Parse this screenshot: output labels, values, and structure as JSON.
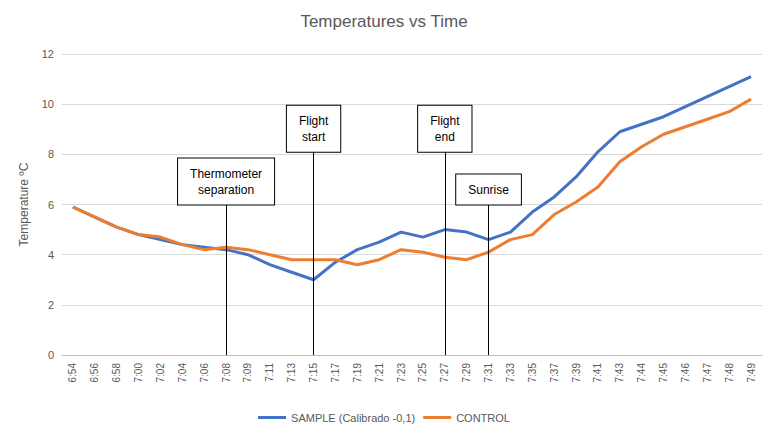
{
  "chart_data": {
    "type": "line",
    "title": "Temperatures vs Time",
    "y_label": "Temperature ºC",
    "categories": [
      "6:54",
      "6:56",
      "6:58",
      "7:00",
      "7:02",
      "7:04",
      "7:06",
      "7:08",
      "7:09",
      "7:11",
      "7:13",
      "7:15",
      "7:17",
      "7:19",
      "7:21",
      "7:23",
      "7:25",
      "7:27",
      "7:29",
      "7:31",
      "7:33",
      "7:35",
      "7:37",
      "7:39",
      "7:41",
      "7:43",
      "7:44",
      "7:45",
      "7:46",
      "7:47",
      "7:48",
      "7:49"
    ],
    "series": [
      {
        "name": "SAMPLE (Calibrado -0,1)",
        "color": "#4472c4",
        "values": [
          5.9,
          5.5,
          5.1,
          4.8,
          4.6,
          4.4,
          4.3,
          4.2,
          4.0,
          3.6,
          3.3,
          3.0,
          3.7,
          4.2,
          4.5,
          4.9,
          4.7,
          5.0,
          4.9,
          4.6,
          4.9,
          5.7,
          6.3,
          7.1,
          8.1,
          8.9,
          9.2,
          9.5,
          9.9,
          10.3,
          10.7,
          11.1
        ]
      },
      {
        "name": "CONTROL",
        "color": "#ed7d31",
        "values": [
          5.9,
          5.5,
          5.1,
          4.8,
          4.7,
          4.4,
          4.2,
          4.3,
          4.2,
          4.0,
          3.8,
          3.8,
          3.8,
          3.6,
          3.8,
          4.2,
          4.1,
          3.9,
          3.8,
          4.1,
          4.6,
          4.8,
          5.6,
          6.1,
          6.7,
          7.7,
          8.3,
          8.8,
          9.1,
          9.4,
          9.7,
          10.2
        ]
      }
    ],
    "ylim": [
      0,
      12
    ],
    "yticks": [
      0,
      2,
      4,
      6,
      8,
      10,
      12
    ],
    "grid": true,
    "legend": "bottom",
    "annotations": [
      {
        "x": "7:08",
        "label": "Thermometer\nseparation"
      },
      {
        "x": "7:15",
        "label": "Flight\nstart"
      },
      {
        "x": "7:27",
        "label": "Flight\nend"
      },
      {
        "x": "7:31",
        "label": "Sunrise"
      }
    ]
  }
}
